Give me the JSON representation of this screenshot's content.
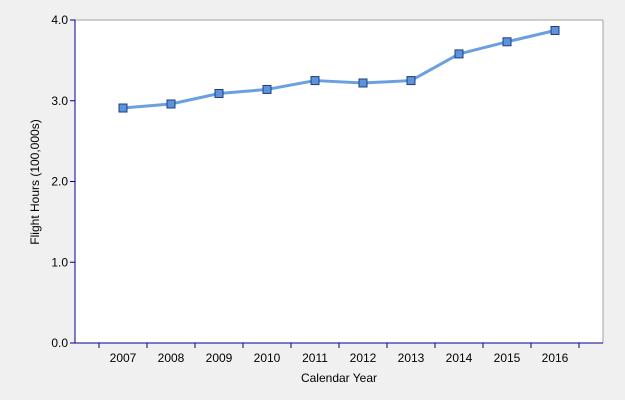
{
  "chart_data": {
    "type": "line",
    "title": "",
    "xlabel": "Calendar Year",
    "ylabel": "Flight Hours (100,000s)",
    "categories": [
      "2007",
      "2008",
      "2009",
      "2010",
      "2011",
      "2012",
      "2013",
      "2014",
      "2015",
      "2016"
    ],
    "series": [
      {
        "values": [
          2.91,
          2.96,
          3.09,
          3.14,
          3.25,
          3.22,
          3.25,
          3.58,
          3.73,
          3.87
        ]
      }
    ],
    "ylim": [
      0,
      4
    ],
    "yticks": [
      0,
      1,
      2,
      3,
      4
    ],
    "ytick_labels": [
      "0.0",
      "1.0",
      "2.0",
      "3.0",
      "4.0"
    ],
    "grid": false,
    "legend": "none",
    "colors": {
      "background": "#f0f0f0",
      "plot_area": "#ffffff",
      "line": "#6a9fe0",
      "marker_fill": "#5b93dd",
      "marker_stroke": "#1f3f78",
      "axis": "#00008b",
      "frame": "#a0a0a0"
    }
  }
}
